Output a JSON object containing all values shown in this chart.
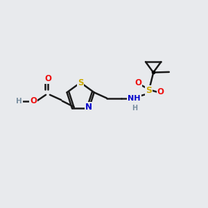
{
  "background_color": "#e8eaed",
  "bond_color": "#1a1a1a",
  "bond_width": 1.8,
  "atom_colors": {
    "H": "#7a8fa0",
    "N": "#0000cc",
    "O": "#ee1111",
    "S": "#ccaa00"
  },
  "figsize": [
    3.0,
    3.0
  ],
  "dpi": 100
}
